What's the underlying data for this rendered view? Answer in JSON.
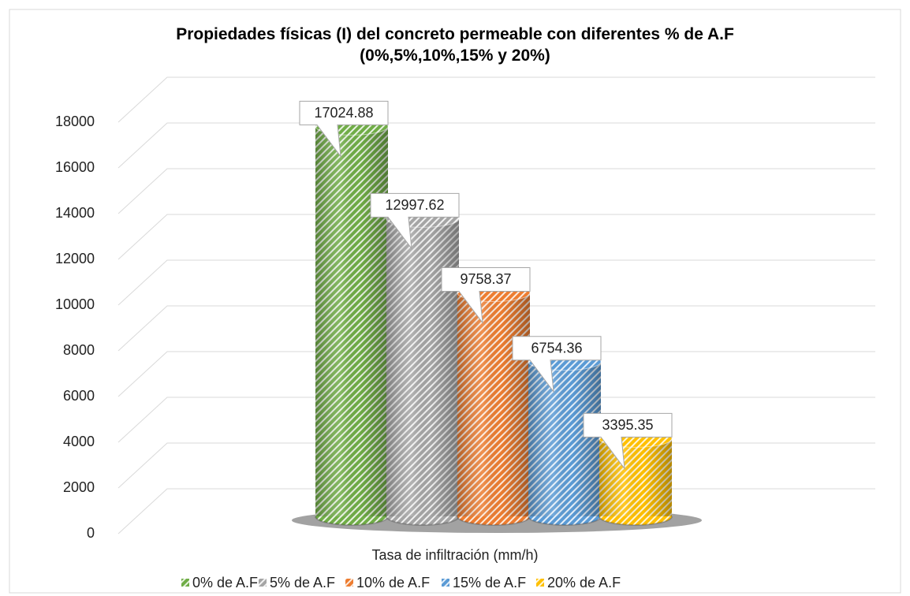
{
  "chart_data": {
    "type": "bar",
    "title": "Propiedades físicas (I) del concreto permeable con diferentes % de A.F (0%,5%,10%,15% y 20%)",
    "categories": [
      "Tasa de infiltración (mm/h)"
    ],
    "series": [
      {
        "name": "0% de A.F",
        "color": "#70ad47",
        "values": [
          17024.88
        ]
      },
      {
        "name": "5% de A.F",
        "color": "#a5a5a5",
        "values": [
          12997.62
        ]
      },
      {
        "name": "10% de A.F",
        "color": "#ed7d31",
        "values": [
          9758.37
        ]
      },
      {
        "name": "15% de A.F",
        "color": "#5b9bd5",
        "values": [
          6754.36
        ]
      },
      {
        "name": "20% de A.F",
        "color": "#ffc000",
        "values": [
          3395.35
        ]
      }
    ],
    "ylim": [
      0,
      18000
    ],
    "yticks": [
      0,
      2000,
      4000,
      6000,
      8000,
      10000,
      12000,
      14000,
      16000,
      18000
    ],
    "grid": true,
    "legend": "bottom"
  }
}
